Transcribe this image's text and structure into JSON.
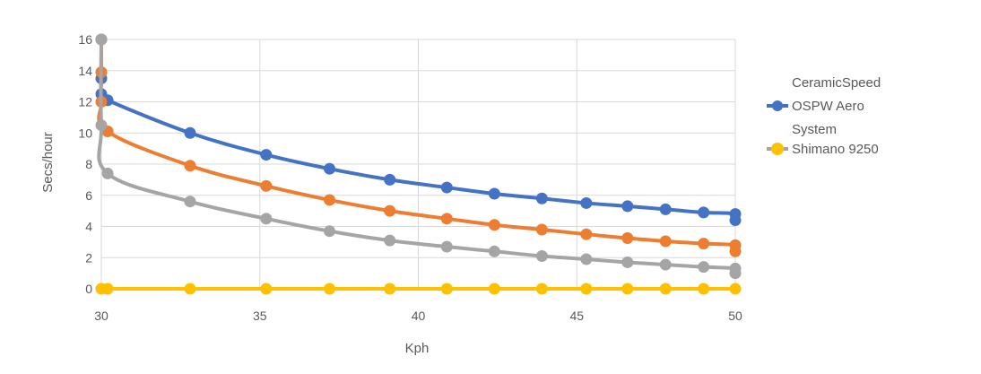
{
  "chart_data": {
    "type": "line",
    "title": "",
    "xlabel": "Kph",
    "ylabel": "Secs/hour",
    "xlim": [
      30,
      50
    ],
    "ylim": [
      0,
      16
    ],
    "xticks": [
      30,
      35,
      40,
      45,
      50
    ],
    "yticks": [
      0,
      2,
      4,
      6,
      8,
      10,
      12,
      14,
      16
    ],
    "grid": true,
    "legend_position": "right",
    "legend": [
      "CeramicSpeed OSPW Aero System",
      "Shimano 9250"
    ],
    "series": [
      {
        "color": "#4472c4",
        "points": [
          [
            30.0,
            16.0
          ],
          [
            30.0,
            13.5
          ],
          [
            30.0,
            12.5
          ],
          [
            30.2,
            12.1
          ],
          [
            32.8,
            10.0
          ],
          [
            35.2,
            8.6
          ],
          [
            37.2,
            7.7
          ],
          [
            39.1,
            7.0
          ],
          [
            40.9,
            6.5
          ],
          [
            42.4,
            6.1
          ],
          [
            43.9,
            5.8
          ],
          [
            45.3,
            5.5
          ],
          [
            46.6,
            5.3
          ],
          [
            47.8,
            5.1
          ],
          [
            49.0,
            4.9
          ],
          [
            50.0,
            4.8
          ],
          [
            50.0,
            4.4
          ]
        ],
        "points_smooth": true
      },
      {
        "color": "#ed7d31",
        "points": [
          [
            30.0,
            16.0
          ],
          [
            30.0,
            13.9
          ],
          [
            30.0,
            12.0
          ],
          [
            30.2,
            10.1
          ],
          [
            32.8,
            7.9
          ],
          [
            35.2,
            6.6
          ],
          [
            37.2,
            5.7
          ],
          [
            39.1,
            5.0
          ],
          [
            40.9,
            4.5
          ],
          [
            42.4,
            4.1
          ],
          [
            43.9,
            3.8
          ],
          [
            45.3,
            3.5
          ],
          [
            46.6,
            3.25
          ],
          [
            47.8,
            3.05
          ],
          [
            49.0,
            2.9
          ],
          [
            50.0,
            2.8
          ],
          [
            50.0,
            2.4
          ]
        ],
        "points_smooth": true
      },
      {
        "color": "#a5a5a5",
        "points": [
          [
            30.0,
            16.0
          ],
          [
            30.0,
            10.5
          ],
          [
            30.2,
            7.4
          ],
          [
            32.8,
            5.6
          ],
          [
            35.2,
            4.5
          ],
          [
            37.2,
            3.7
          ],
          [
            39.1,
            3.1
          ],
          [
            40.9,
            2.7
          ],
          [
            42.4,
            2.4
          ],
          [
            43.9,
            2.1
          ],
          [
            45.3,
            1.9
          ],
          [
            46.6,
            1.7
          ],
          [
            47.8,
            1.55
          ],
          [
            49.0,
            1.4
          ],
          [
            50.0,
            1.3
          ],
          [
            50.0,
            1.0
          ]
        ],
        "points_smooth": true
      },
      {
        "color": "#ffc000",
        "points": [
          [
            30.0,
            0.0
          ],
          [
            30.2,
            0.0
          ],
          [
            32.8,
            0.0
          ],
          [
            35.2,
            0.0
          ],
          [
            37.2,
            0.0
          ],
          [
            39.1,
            0.0
          ],
          [
            40.9,
            0.0
          ],
          [
            42.4,
            0.0
          ],
          [
            43.9,
            0.0
          ],
          [
            45.3,
            0.0
          ],
          [
            46.6,
            0.0
          ],
          [
            47.8,
            0.0
          ],
          [
            49.0,
            0.0
          ],
          [
            50.0,
            0.0
          ]
        ],
        "points_smooth": false
      }
    ]
  },
  "legend_items": [
    {
      "label_lines": [
        "CeramicSpeed",
        "OSPW Aero",
        "System"
      ],
      "marker_color": "#4472c4"
    },
    {
      "label_lines": [
        "Shimano 9250"
      ],
      "marker_color": "#ffc000"
    }
  ]
}
